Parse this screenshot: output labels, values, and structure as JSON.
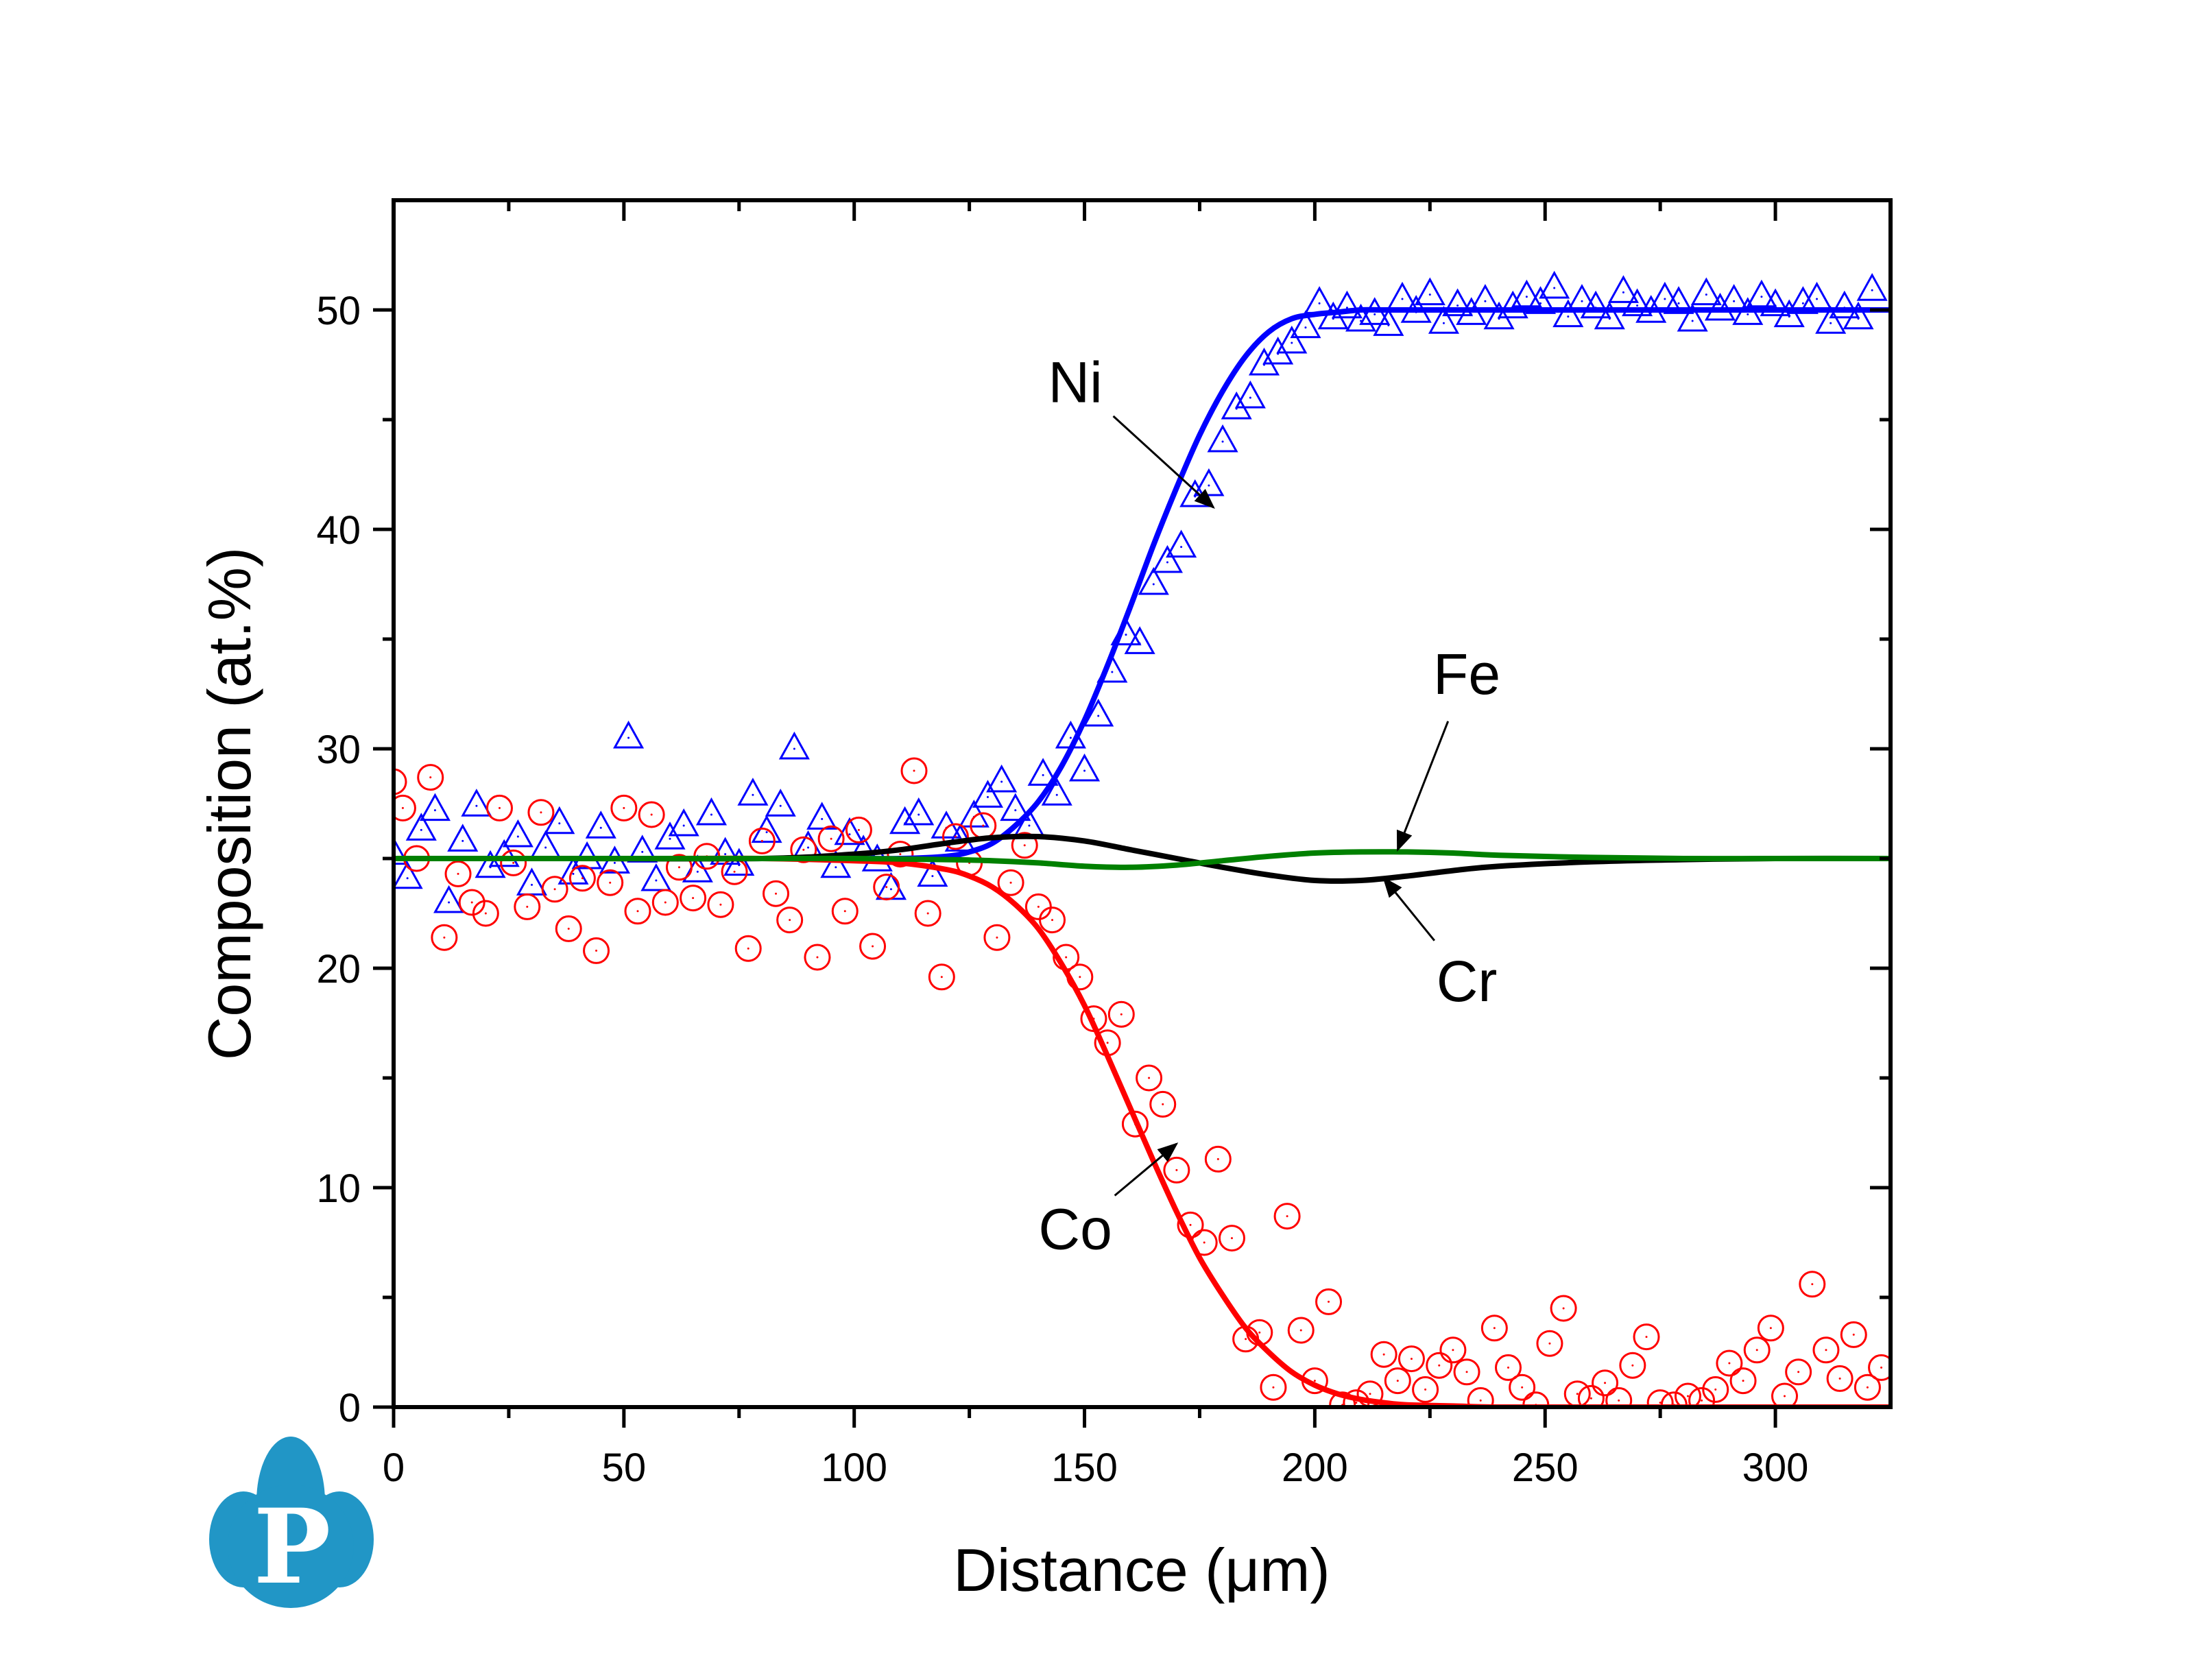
{
  "chart_data": {
    "type": "scatter",
    "title": "",
    "xlabel": "Distance (μm)",
    "ylabel": "Composition (at.%)",
    "xlim": [
      0,
      325
    ],
    "ylim": [
      0,
      55
    ],
    "xticks": [
      0,
      50,
      100,
      150,
      200,
      250,
      300
    ],
    "xtick_labels": [
      "0",
      "50",
      "100",
      "150",
      "200",
      "250",
      "300"
    ],
    "yticks": [
      0,
      10,
      20,
      30,
      40,
      50
    ],
    "ytick_labels": [
      "0",
      "10",
      "20",
      "30",
      "40",
      "50"
    ],
    "grid": false,
    "legend": null,
    "series": [
      {
        "name": "Ni",
        "kind": "measured",
        "marker": "triangle-open",
        "color": "#0000ff",
        "x": [
          0,
          3,
          6,
          9,
          12,
          15,
          18,
          21,
          24,
          27,
          30,
          33,
          36,
          39,
          42,
          45,
          48,
          51,
          54,
          57,
          60,
          63,
          66,
          69,
          72,
          75,
          78,
          81,
          84,
          87,
          90,
          93,
          96,
          99,
          102,
          105,
          108,
          111,
          114,
          117,
          120,
          123,
          126,
          129,
          132,
          135,
          138,
          141,
          144,
          147,
          150,
          153,
          156,
          159,
          162,
          165,
          168,
          171,
          174,
          177,
          180,
          183,
          186,
          189,
          192,
          195,
          198,
          201,
          204,
          207,
          210,
          213,
          216,
          219,
          222,
          225,
          228,
          231,
          234,
          237,
          240,
          243,
          246,
          249,
          252,
          255,
          258,
          261,
          264,
          267,
          270,
          273,
          276,
          279,
          282,
          285,
          288,
          291,
          294,
          297,
          300,
          303,
          306,
          309,
          312,
          315,
          318,
          321
        ],
        "y": [
          25.2,
          24.1,
          26.3,
          27.2,
          23.0,
          25.8,
          27.4,
          24.6,
          25.1,
          26.0,
          23.8,
          25.5,
          26.6,
          24.3,
          25.0,
          26.4,
          24.8,
          30.5,
          25.3,
          24.0,
          25.9,
          26.5,
          24.4,
          27.0,
          25.2,
          24.7,
          27.9,
          26.2,
          27.4,
          30.0,
          25.5,
          26.8,
          24.6,
          26.1,
          25.3,
          24.9,
          23.6,
          26.6,
          27.0,
          24.2,
          26.4,
          25.8,
          26.9,
          27.8,
          28.5,
          27.2,
          26.5,
          28.8,
          27.9,
          30.5,
          29.0,
          31.5,
          33.5,
          35.2,
          34.8,
          37.5,
          38.5,
          39.2,
          41.5,
          42.0,
          44.0,
          45.5,
          46.0,
          47.5,
          48.0,
          48.5,
          49.2,
          50.3,
          49.6,
          50.1,
          49.5,
          49.8,
          49.3,
          50.5,
          49.9,
          50.7,
          49.4,
          50.2,
          49.8,
          50.4,
          49.6,
          50.1,
          50.6,
          50.3,
          51.0,
          49.7,
          50.4,
          50.1,
          49.6,
          50.8,
          50.2,
          49.9,
          50.5,
          50.3,
          49.5,
          50.7,
          50.0,
          50.4,
          49.8,
          50.6,
          50.2,
          49.7,
          50.3,
          50.5,
          49.4,
          50.1,
          49.6,
          50.9
        ]
      },
      {
        "name": "Co",
        "kind": "measured",
        "marker": "circle-open",
        "color": "#ff0000",
        "x": [
          0,
          2,
          5,
          8,
          11,
          14,
          17,
          20,
          23,
          26,
          29,
          32,
          35,
          38,
          41,
          44,
          47,
          50,
          53,
          56,
          59,
          62,
          65,
          68,
          71,
          74,
          77,
          80,
          83,
          86,
          89,
          92,
          95,
          98,
          101,
          104,
          107,
          110,
          113,
          116,
          119,
          122,
          125,
          128,
          131,
          134,
          137,
          140,
          143,
          146,
          149,
          152,
          155,
          158,
          161,
          164,
          167,
          170,
          173,
          176,
          179,
          182,
          185,
          188,
          191,
          194,
          197,
          200,
          203,
          206,
          209,
          212,
          215,
          218,
          221,
          224,
          227,
          230,
          233,
          236,
          239,
          242,
          245,
          248,
          251,
          254,
          257,
          260,
          263,
          266,
          269,
          272,
          275,
          278,
          281,
          284,
          287,
          290,
          293,
          296,
          299,
          302,
          305,
          308,
          311,
          314,
          317,
          320,
          323
        ],
        "y": [
          28.5,
          27.3,
          25.0,
          28.7,
          21.4,
          24.3,
          23.0,
          22.5,
          27.3,
          24.8,
          22.8,
          27.1,
          23.6,
          21.8,
          24.1,
          20.8,
          23.9,
          27.3,
          22.6,
          27.0,
          23.0,
          24.6,
          23.2,
          25.1,
          22.9,
          24.4,
          20.9,
          25.8,
          23.4,
          22.2,
          25.4,
          20.5,
          25.9,
          22.6,
          26.3,
          21.0,
          23.7,
          25.2,
          29.0,
          22.5,
          19.6,
          26.0,
          24.8,
          26.5,
          21.4,
          23.9,
          25.6,
          22.8,
          22.2,
          20.5,
          19.6,
          17.7,
          16.6,
          17.9,
          12.9,
          15.0,
          13.8,
          10.8,
          8.3,
          7.5,
          11.3,
          7.7,
          3.1,
          3.4,
          0.9,
          8.7,
          3.5,
          1.2,
          4.8,
          0.1,
          0.2,
          0.6,
          2.4,
          1.2,
          2.2,
          0.8,
          1.9,
          2.6,
          1.6,
          0.3,
          3.6,
          1.8,
          0.9,
          0.1,
          2.9,
          4.5,
          0.6,
          0.4,
          1.1,
          0.3,
          1.9,
          3.2,
          0.2,
          0.1,
          0.5,
          0.3,
          0.8,
          2.0,
          1.2,
          2.6,
          3.6,
          0.5,
          1.6,
          5.6,
          2.6,
          1.3,
          3.3,
          0.9,
          1.8
        ]
      },
      {
        "name": "Ni",
        "kind": "fit",
        "color": "#0000ff",
        "x": [
          0,
          20,
          40,
          60,
          80,
          100,
          110,
          120,
          125,
          130,
          135,
          140,
          145,
          150,
          155,
          160,
          165,
          170,
          175,
          180,
          185,
          190,
          195,
          200,
          205,
          210,
          215,
          220,
          230,
          240,
          260,
          280,
          300,
          325
        ],
        "y": [
          25.0,
          25.0,
          25.0,
          25.0,
          25.0,
          25.0,
          25.0,
          25.1,
          25.3,
          25.7,
          26.5,
          27.6,
          29.2,
          31.3,
          33.8,
          36.5,
          39.3,
          41.9,
          44.3,
          46.3,
          47.9,
          49.0,
          49.6,
          49.8,
          49.9,
          50.0,
          50.0,
          50.0,
          50.0,
          50.0,
          50.0,
          50.0,
          50.0,
          50.0
        ]
      },
      {
        "name": "Co",
        "kind": "fit",
        "color": "#ff0000",
        "x": [
          0,
          20,
          40,
          60,
          80,
          100,
          110,
          120,
          125,
          130,
          135,
          140,
          145,
          150,
          155,
          160,
          165,
          170,
          175,
          180,
          185,
          190,
          195,
          200,
          205,
          210,
          215,
          220,
          230,
          240,
          260,
          280,
          300,
          325
        ],
        "y": [
          25.0,
          25.0,
          25.0,
          25.0,
          25.0,
          24.9,
          24.8,
          24.5,
          24.2,
          23.7,
          22.9,
          21.8,
          20.2,
          18.3,
          16.0,
          13.6,
          11.2,
          8.9,
          6.8,
          5.1,
          3.6,
          2.5,
          1.6,
          1.0,
          0.6,
          0.35,
          0.2,
          0.1,
          0.05,
          0.0,
          0.0,
          0.0,
          0.0,
          0.0
        ]
      },
      {
        "name": "Cr",
        "kind": "fit",
        "color": "#000000",
        "x": [
          0,
          40,
          80,
          100,
          110,
          120,
          130,
          140,
          150,
          160,
          170,
          180,
          190,
          200,
          210,
          220,
          230,
          240,
          260,
          280,
          300,
          325
        ],
        "y": [
          25.0,
          25.0,
          25.0,
          25.2,
          25.4,
          25.7,
          25.95,
          26.0,
          25.8,
          25.4,
          25.0,
          24.6,
          24.25,
          24.0,
          24.0,
          24.2,
          24.45,
          24.65,
          24.85,
          24.95,
          25.0,
          25.0
        ]
      },
      {
        "name": "Fe",
        "kind": "fit",
        "color": "#008000",
        "x": [
          0,
          40,
          80,
          100,
          120,
          130,
          140,
          150,
          160,
          170,
          180,
          190,
          200,
          210,
          220,
          230,
          240,
          260,
          280,
          300,
          325
        ],
        "y": [
          25.0,
          25.0,
          25.0,
          25.0,
          24.95,
          24.9,
          24.8,
          24.65,
          24.6,
          24.7,
          24.9,
          25.1,
          25.25,
          25.3,
          25.3,
          25.25,
          25.15,
          25.05,
          25.0,
          25.0,
          25.0
        ]
      }
    ],
    "annotations": [
      {
        "text": "Ni",
        "label_at": [
          148,
          45.8
        ],
        "arrow_to": [
          178,
          41.0
        ]
      },
      {
        "text": "Fe",
        "label_at": [
          233,
          32.5
        ],
        "arrow_to": [
          218,
          25.4
        ]
      },
      {
        "text": "Cr",
        "label_at": [
          233,
          18.5
        ],
        "arrow_to": [
          215,
          24.1
        ]
      },
      {
        "text": "Co",
        "label_at": [
          148,
          7.2
        ],
        "arrow_to": [
          170,
          12.0
        ]
      }
    ]
  },
  "logo": {
    "letter": "P",
    "color": "#2196c6"
  }
}
